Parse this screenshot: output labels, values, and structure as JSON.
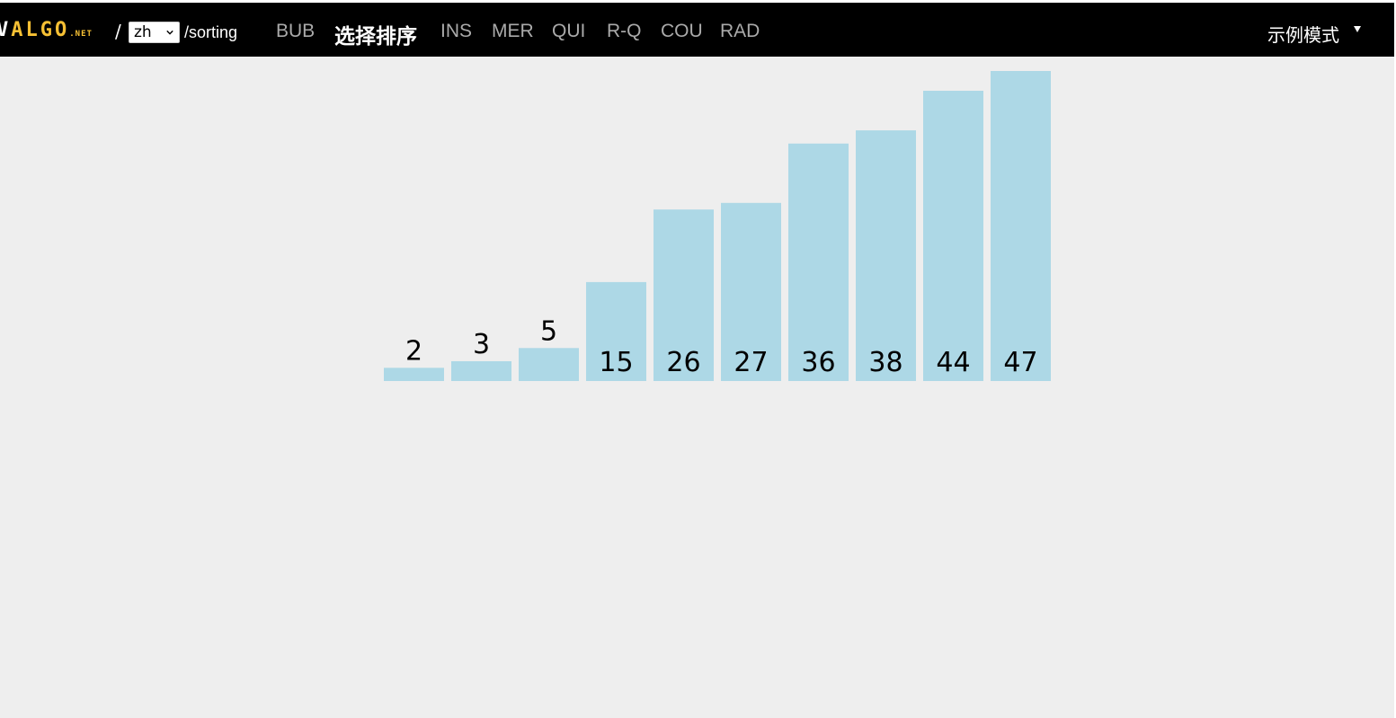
{
  "header": {
    "logo_v": "V",
    "logo_algo": "ALGO",
    "logo_net": ".NET",
    "slash": "/",
    "language": "zh",
    "path": "/sorting",
    "nav": [
      {
        "label": "BUB",
        "active": false
      },
      {
        "label": "选择排序",
        "active": true
      },
      {
        "label": "INS",
        "active": false
      },
      {
        "label": "MER",
        "active": false
      },
      {
        "label": "QUI",
        "active": false
      },
      {
        "label": "R-Q",
        "active": false
      },
      {
        "label": "COU",
        "active": false
      },
      {
        "label": "RAD",
        "active": false
      }
    ],
    "mode_label": "示例模式"
  },
  "colors": {
    "topbar": "#000000",
    "logo_accent": "#f6c034",
    "nav_inactive": "#aaaaaa",
    "nav_active": "#ffffff",
    "bar": "#add8e6",
    "background": "#eeeeee"
  },
  "icons": {
    "language_dropdown": "chevron-down-icon",
    "mode_dropdown": "caret-down-icon"
  },
  "chart_data": {
    "type": "bar",
    "values": [
      2,
      3,
      5,
      15,
      26,
      27,
      36,
      38,
      44,
      47
    ],
    "labels": [
      "2",
      "3",
      "5",
      "15",
      "26",
      "27",
      "36",
      "38",
      "44",
      "47"
    ],
    "ylim": [
      0,
      47
    ]
  }
}
